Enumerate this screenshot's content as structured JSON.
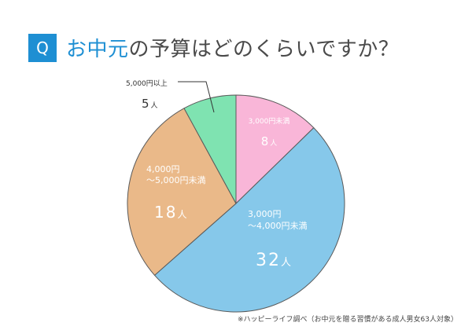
{
  "header": {
    "badge": "Q",
    "title_accent": "お中元",
    "title_rest": "の予算はどのくらいですか？"
  },
  "footnote": "※ハッピーライフ調べ（お中元を贈る習慣がある成人男女63人対象）",
  "colors": {
    "badge": "#1e8fd3",
    "accent": "#1e8fd3",
    "title_text": "#4a4a4a"
  },
  "chart_data": {
    "type": "pie",
    "title": "お中元の予算はどのくらいですか？",
    "unit": "人",
    "slices": [
      {
        "label_lines": [
          "3,000円未満"
        ],
        "value": 8,
        "color": "#f9b6d8"
      },
      {
        "label_lines": [
          "3,000円",
          "～4,000円未満"
        ],
        "value": 32,
        "color": "#86c8ea"
      },
      {
        "label_lines": [
          "4,000円",
          "～5,000円未満"
        ],
        "value": 18,
        "color": "#eab989"
      },
      {
        "label_lines": [
          "5,000円以上"
        ],
        "value": 5,
        "color": "#7fe3b1"
      }
    ]
  }
}
